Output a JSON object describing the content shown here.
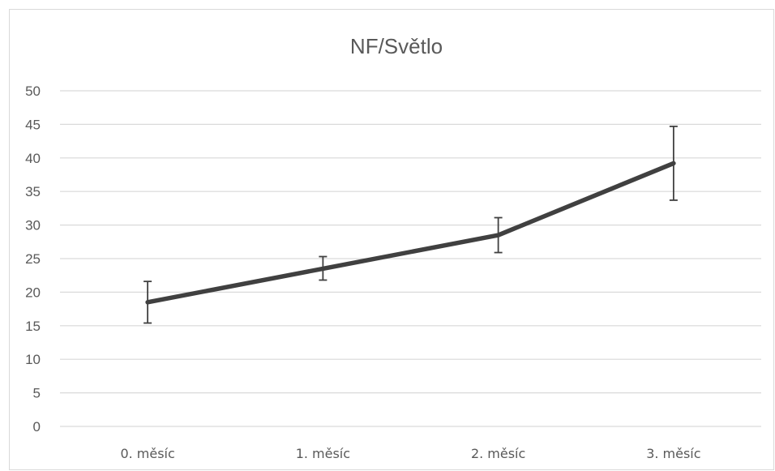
{
  "chart_data": {
    "type": "line",
    "title": "NF/Světlo",
    "xlabel": "",
    "ylabel": "",
    "categories": [
      "0. měsíc",
      "1. měsíc",
      "2. měsíc",
      "3. měsíc"
    ],
    "series": [
      {
        "values": [
          18.5,
          23.5,
          28.5,
          39.2
        ],
        "error_low": [
          15.4,
          21.8,
          25.9,
          33.7
        ],
        "error_high": [
          21.6,
          25.3,
          31.1,
          44.7
        ]
      }
    ],
    "yticks": [
      0,
      5,
      10,
      15,
      20,
      25,
      30,
      35,
      40,
      45,
      50
    ],
    "ylim": [
      0,
      50
    ],
    "grid": true,
    "legend": "none",
    "line_color": "#404040"
  }
}
